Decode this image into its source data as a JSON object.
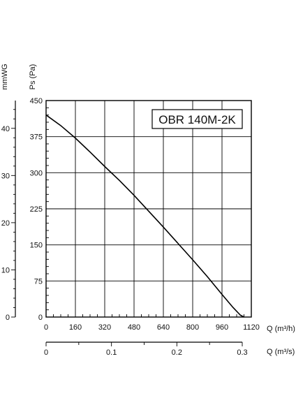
{
  "chart_data": {
    "type": "line",
    "title": "",
    "annotation": "OBR 140M-2K",
    "xlabel": "Q (m³/h)",
    "ylabel": "Ps (Pa)",
    "secondary_xlabel": "Q (m³/s)",
    "secondary_ylabel": "mmWG",
    "xlim": [
      0,
      1120
    ],
    "ylim": [
      0,
      450
    ],
    "x_ticks": [
      0,
      160,
      320,
      480,
      640,
      800,
      960,
      1120
    ],
    "y_ticks": [
      0,
      75,
      150,
      225,
      300,
      375,
      450
    ],
    "secondary_x_ticks": [
      0,
      0.1,
      0.2,
      0.3
    ],
    "secondary_y_ticks": [
      0,
      10,
      20,
      30,
      40
    ],
    "grid": true,
    "series": [
      {
        "x": [
          0,
          80,
          160,
          240,
          320,
          400,
          480,
          560,
          640,
          720,
          800,
          880,
          960,
          1020,
          1060,
          1080
        ],
        "values": [
          420,
          398,
          372,
          343,
          313,
          284,
          253,
          220,
          187,
          153,
          119,
          84,
          47,
          20,
          4,
          0
        ]
      }
    ],
    "color": "#000000"
  }
}
